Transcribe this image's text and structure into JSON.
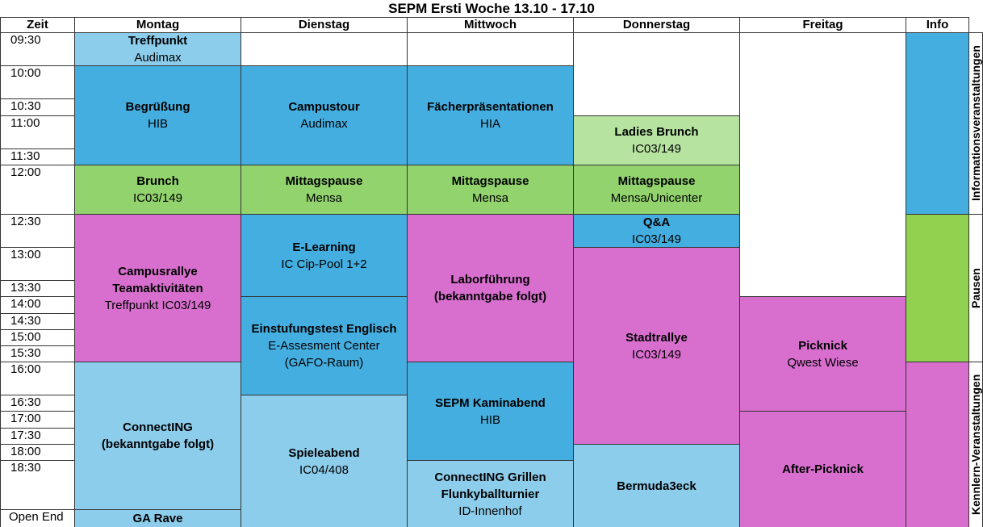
{
  "title": "SEPM Ersti Woche 13.10 - 17.10",
  "header": [
    "Zeit",
    "Montag",
    "Dienstag",
    "Mittwoch",
    "Donnerstag",
    "Freitag",
    "Info"
  ],
  "times": [
    "09:30",
    "10:00",
    "10:30",
    "11:00",
    "11:30",
    "12:00",
    "12:30",
    "13:00",
    "13:30",
    "14:00",
    "14:30",
    "15:00",
    "15:30",
    "16:00",
    "16:30",
    "17:00",
    "17:30",
    "18:00",
    "18:30",
    "Open End"
  ],
  "days": [
    {
      "events": [
        {
          "title_lines": [
            "Treffpunkt"
          ],
          "detail_lines": [
            "Audimax"
          ]
        },
        {
          "title_lines": [
            "Begrüßung"
          ],
          "detail_lines": [
            "HIB"
          ]
        },
        {
          "title_lines": [
            "Brunch"
          ],
          "detail_lines": [
            "IC03/149"
          ]
        },
        {
          "title_lines": [
            "Campusrallye",
            "Teamaktivitäten"
          ],
          "detail_lines": [
            "Treffpunkt IC03/149"
          ]
        },
        {
          "title_lines": [
            "ConnectING",
            "(bekanntgabe folgt)"
          ],
          "detail_lines": []
        },
        {
          "title_lines": [
            "GA Rave"
          ],
          "detail_lines": []
        }
      ]
    },
    {
      "events": [
        {
          "title_lines": [
            "Campustour"
          ],
          "detail_lines": [
            "Audimax"
          ]
        },
        {
          "title_lines": [
            "Mittagspause"
          ],
          "detail_lines": [
            "Mensa"
          ]
        },
        {
          "title_lines": [
            "E-Learning"
          ],
          "detail_lines": [
            "IC Cip-Pool 1+2"
          ]
        },
        {
          "title_lines": [
            "Einstufungstest Englisch"
          ],
          "detail_lines": [
            "E-Assesment Center",
            "(GAFO-Raum)"
          ]
        },
        {
          "title_lines": [
            "Spieleabend"
          ],
          "detail_lines": [
            "IC04/408"
          ]
        }
      ]
    },
    {
      "events": [
        {
          "title_lines": [
            "Fächerpräsentationen"
          ],
          "detail_lines": [
            "HIA"
          ]
        },
        {
          "title_lines": [
            "Mittagspause"
          ],
          "detail_lines": [
            "Mensa"
          ]
        },
        {
          "title_lines": [
            "Laborführung",
            "(bekanntgabe folgt)"
          ],
          "detail_lines": []
        },
        {
          "title_lines": [
            "SEPM Kaminabend"
          ],
          "detail_lines": [
            "HIB"
          ]
        },
        {
          "title_lines": [
            "ConnectING Grillen",
            "Flunkyballturnier"
          ],
          "detail_lines": [
            "ID-Innenhof"
          ]
        }
      ]
    },
    {
      "events": [
        {
          "title_lines": [
            "Ladies Brunch"
          ],
          "detail_lines": [
            "IC03/149"
          ]
        },
        {
          "title_lines": [
            "Mittagspause"
          ],
          "detail_lines": [
            "Mensa/Unicenter"
          ]
        },
        {
          "title_lines": [
            "Q&A"
          ],
          "detail_lines": [
            "IC03/149"
          ]
        },
        {
          "title_lines": [
            "Stadtrallye"
          ],
          "detail_lines": [
            "IC03/149"
          ]
        },
        {
          "title_lines": [
            "Bermuda3eck"
          ],
          "detail_lines": []
        }
      ]
    },
    {
      "events": [
        {
          "title_lines": [
            "Picknick"
          ],
          "detail_lines": [
            "Qwest Wiese"
          ]
        },
        {
          "title_lines": [
            "After-Picknick"
          ],
          "detail_lines": []
        }
      ]
    }
  ],
  "info": [
    "Informationsveranstaltungen",
    "Pausen",
    "Kennlern-Veranstaltungen"
  ]
}
